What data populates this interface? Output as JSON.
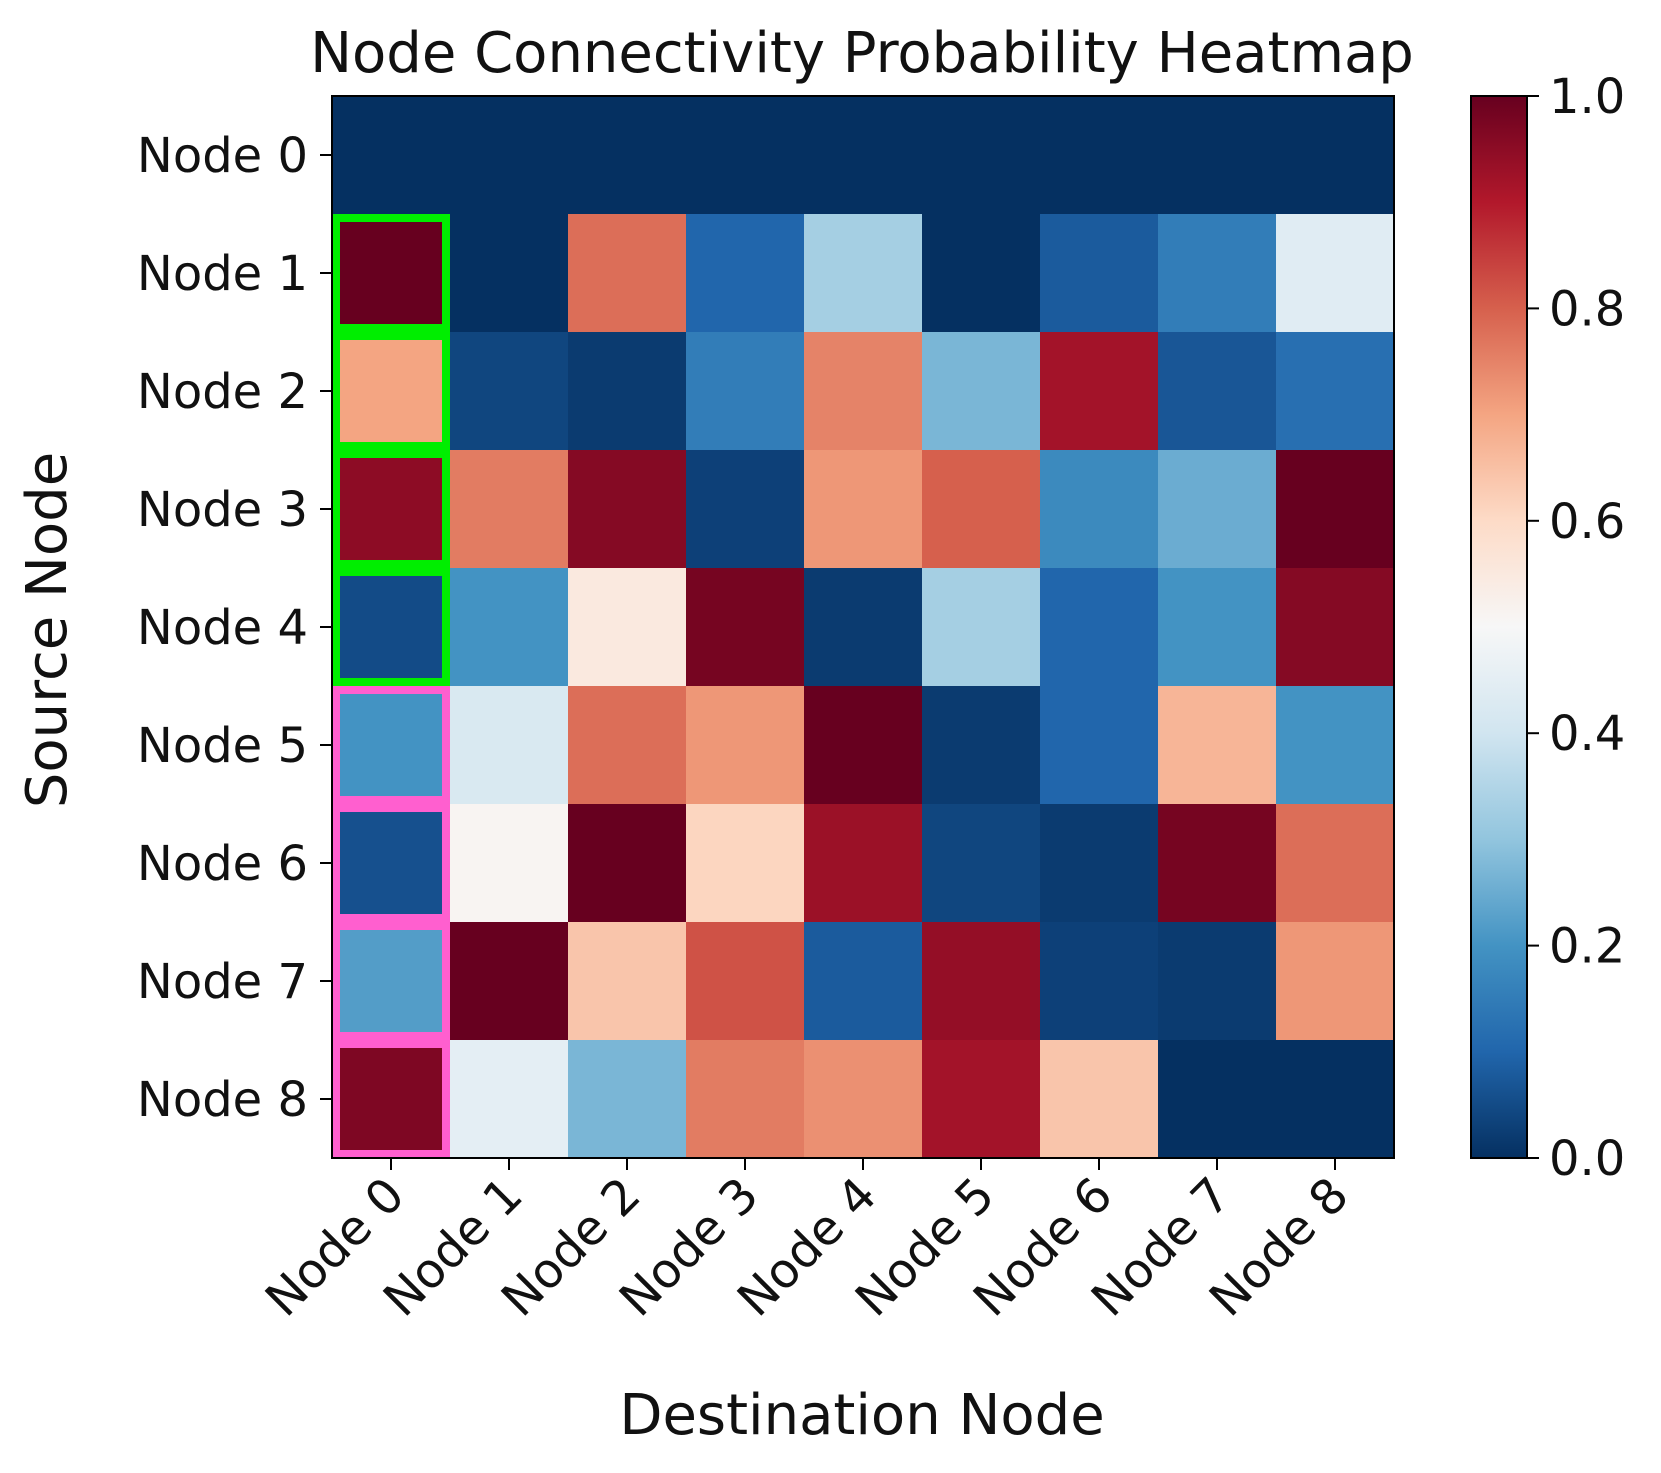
{
  "chart_data": {
    "type": "heatmap",
    "title": "Node Connectivity Probability Heatmap",
    "xlabel": "Destination Node",
    "ylabel": "Source Node",
    "x_categories": [
      "Node 0",
      "Node 1",
      "Node 2",
      "Node 3",
      "Node 4",
      "Node 5",
      "Node 6",
      "Node 7",
      "Node 8"
    ],
    "y_categories": [
      "Node 0",
      "Node 1",
      "Node 2",
      "Node 3",
      "Node 4",
      "Node 5",
      "Node 6",
      "Node 7",
      "Node 8"
    ],
    "values": [
      [
        0.0,
        0.0,
        0.0,
        0.0,
        0.0,
        0.0,
        0.0,
        0.0,
        0.0
      ],
      [
        1.0,
        0.0,
        0.78,
        0.1,
        0.33,
        0.0,
        0.08,
        0.15,
        0.44
      ],
      [
        0.7,
        0.04,
        0.02,
        0.15,
        0.75,
        0.27,
        0.92,
        0.07,
        0.12
      ],
      [
        0.95,
        0.76,
        0.96,
        0.03,
        0.72,
        0.8,
        0.18,
        0.25,
        1.0
      ],
      [
        0.05,
        0.2,
        0.55,
        0.98,
        0.02,
        0.33,
        0.1,
        0.2,
        0.96
      ],
      [
        0.2,
        0.42,
        0.78,
        0.72,
        1.0,
        0.02,
        0.1,
        0.67,
        0.2
      ],
      [
        0.06,
        0.51,
        1.0,
        0.61,
        0.93,
        0.04,
        0.02,
        0.98,
        0.78
      ],
      [
        0.22,
        1.0,
        0.64,
        0.82,
        0.08,
        0.94,
        0.03,
        0.02,
        0.72
      ],
      [
        0.97,
        0.45,
        0.27,
        0.76,
        0.73,
        0.92,
        0.64,
        0.0,
        0.0
      ]
    ],
    "value_range": [
      0,
      1
    ],
    "colormap": "RdBu_r",
    "colorbar": {
      "ticks": [
        "0.0",
        "0.2",
        "0.4",
        "0.6",
        "0.8",
        "1.0"
      ],
      "tick_values": [
        0,
        0.2,
        0.4,
        0.6,
        0.8,
        1.0
      ],
      "placement": "right"
    },
    "highlights": [
      {
        "column": 0,
        "rows": [
          1,
          2,
          3,
          4
        ],
        "color": "#00ee00"
      },
      {
        "column": 0,
        "rows": [
          5,
          6,
          7,
          8
        ],
        "color": "#ff5fcf"
      }
    ],
    "grid": false
  }
}
